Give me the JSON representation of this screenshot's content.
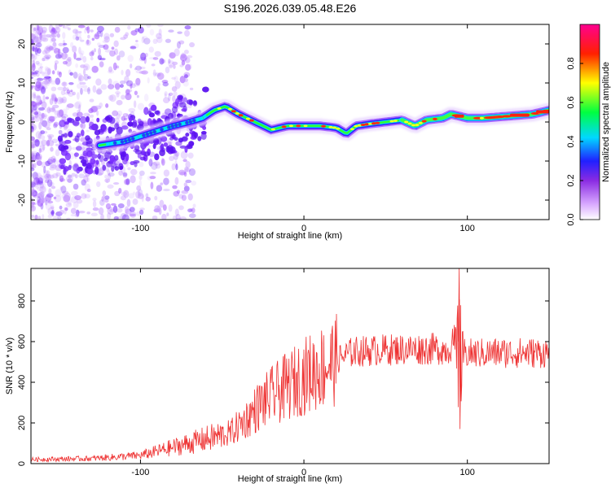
{
  "title": "S196.2026.039.05.48.E26",
  "chart_data": [
    {
      "type": "heatmap",
      "xlabel": "Height of straight line (km)",
      "ylabel": "Frequency (Hz)",
      "xlim": [
        -167,
        150
      ],
      "ylim": [
        -25,
        25
      ],
      "xticks": [
        -100,
        0,
        100
      ],
      "yticks": [
        -20,
        -10,
        0,
        10,
        20
      ],
      "colorbar": {
        "label": "Normalized spectral amplitude",
        "range": [
          0,
          1
        ],
        "ticks": [
          0.0,
          0.2,
          0.4,
          0.6,
          0.8
        ],
        "colors": [
          "#ffffff",
          "#9b30ff",
          "#2020ff",
          "#00ffff",
          "#00ff00",
          "#ffff00",
          "#ff0000",
          "#ff0090"
        ]
      },
      "ridge": {
        "x": [
          -125,
          -110,
          -95,
          -80,
          -70,
          -62,
          -55,
          -48,
          -40,
          -30,
          -20,
          -10,
          0,
          10,
          20,
          26,
          32,
          40,
          50,
          60,
          68,
          75,
          85,
          90,
          100,
          110,
          125,
          140,
          150
        ],
        "y": [
          -6,
          -5,
          -3,
          -1,
          0,
          1,
          3,
          4,
          2,
          0,
          -2,
          -1,
          -1,
          -1,
          -1.5,
          -3,
          -1,
          -0.5,
          0,
          0.5,
          -1,
          0.5,
          1,
          2,
          1,
          1,
          1.5,
          2,
          3
        ]
      }
    },
    {
      "type": "line",
      "xlabel": "Height of straight line (km)",
      "ylabel": "SNR (10 * v/v)",
      "xlim": [
        -167,
        150
      ],
      "ylim": [
        0,
        960
      ],
      "xticks": [
        -100,
        0,
        100
      ],
      "yticks": [
        0,
        200,
        400,
        600,
        800
      ],
      "color": "#ee3333",
      "envelope": {
        "x": [
          -167,
          -130,
          -100,
          -80,
          -60,
          -45,
          -35,
          -28,
          -20,
          -10,
          0,
          10,
          20,
          30,
          50,
          80,
          88,
          92,
          96,
          100,
          120,
          150
        ],
        "y": [
          20,
          25,
          40,
          80,
          120,
          150,
          220,
          280,
          330,
          380,
          430,
          470,
          510,
          550,
          560,
          565,
          560,
          600,
          550,
          540,
          545,
          545
        ]
      },
      "spike": {
        "x": 95,
        "max": 960,
        "min": 170
      }
    }
  ]
}
